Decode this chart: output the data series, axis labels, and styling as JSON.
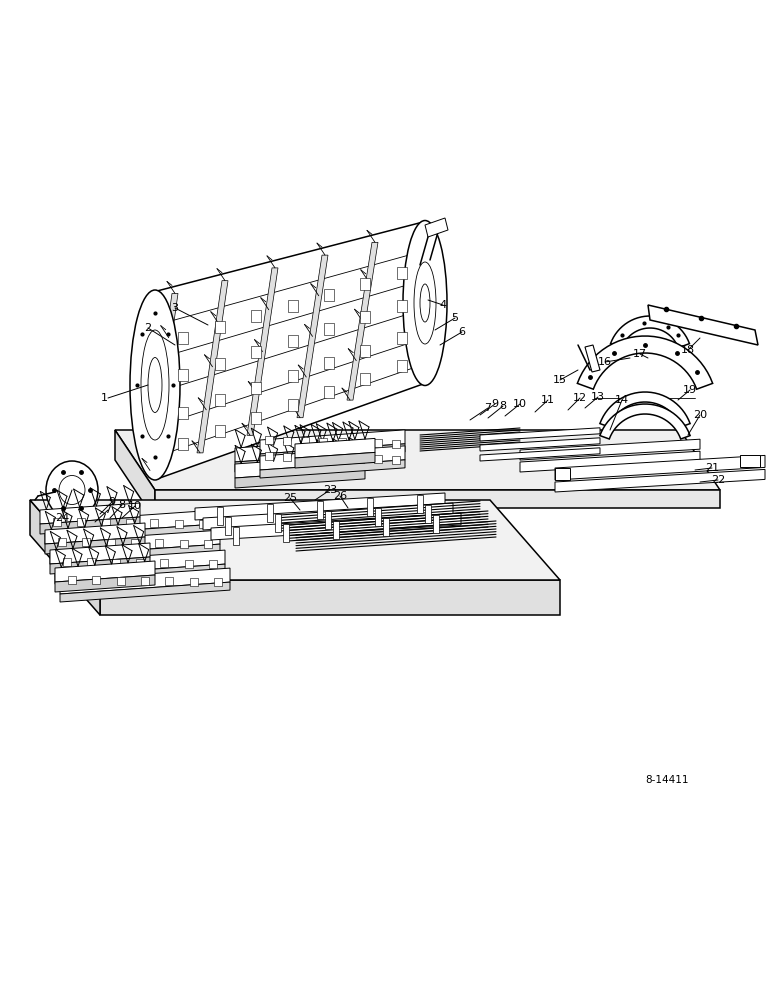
{
  "bg_color": "#ffffff",
  "fig_width": 7.8,
  "fig_height": 10.0,
  "dpi": 100,
  "ref_code": "8-14411",
  "lw_main": 1.1,
  "lw_thin": 0.6,
  "lw_thick": 1.4
}
